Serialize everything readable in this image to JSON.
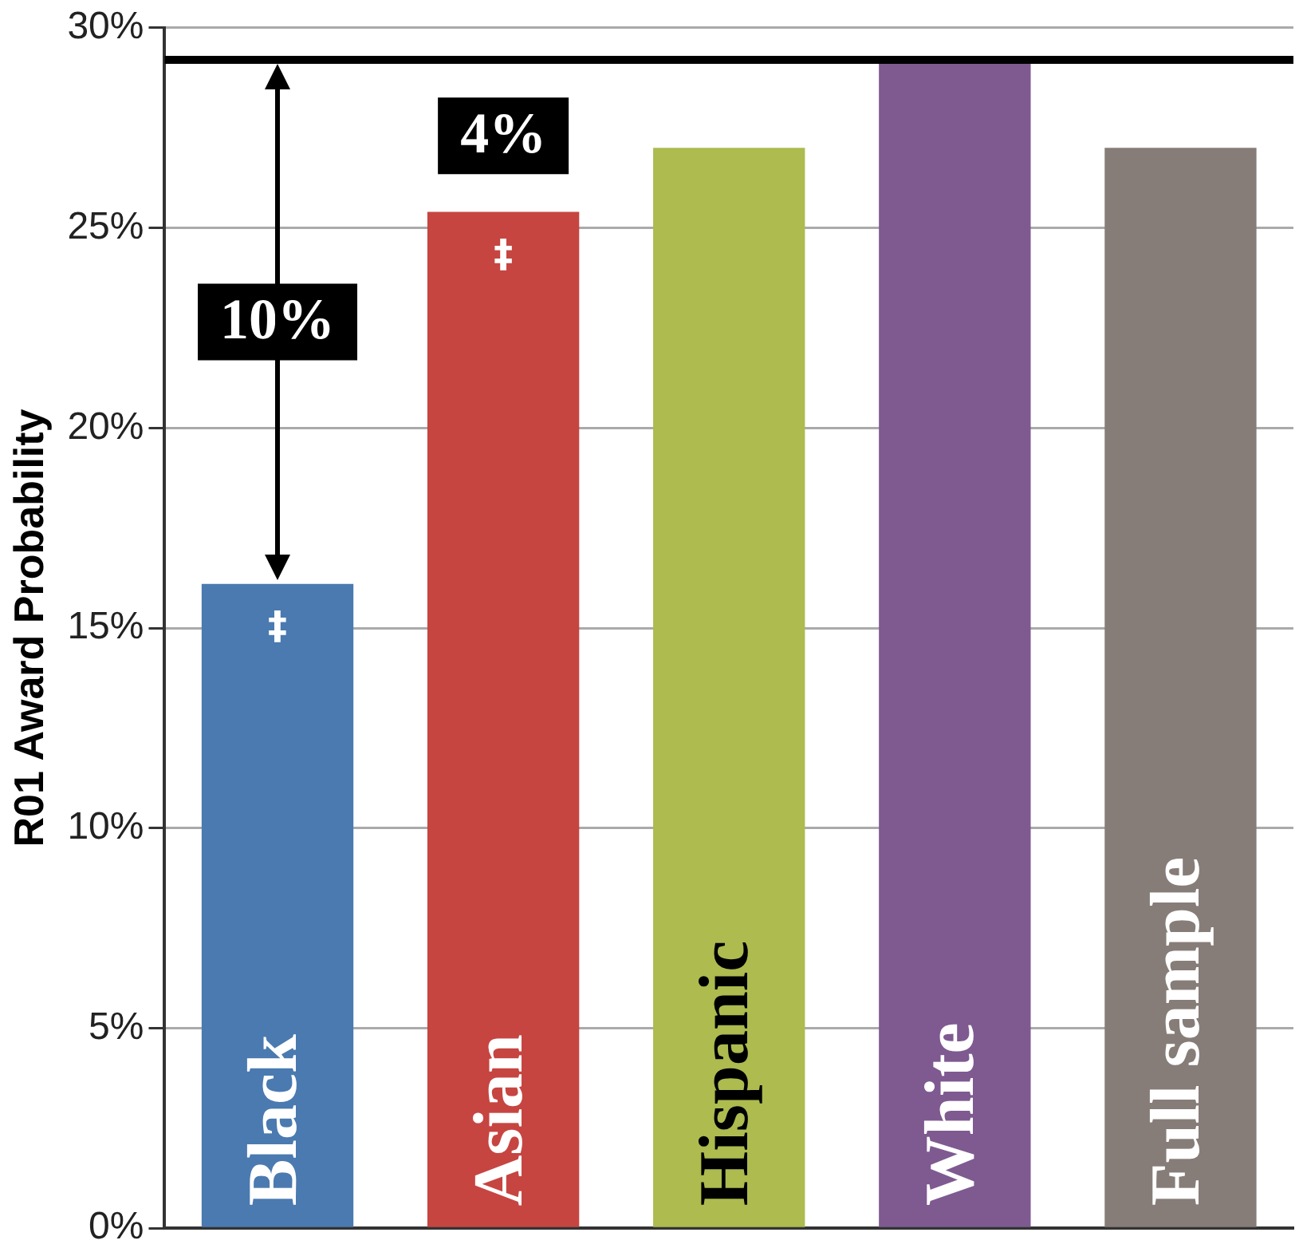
{
  "chart_data": {
    "type": "bar",
    "ylabel": "R01 Award Probability",
    "categories": [
      "Black",
      "Asian",
      "Hispanic",
      "White",
      "Full sample"
    ],
    "values": [
      16.1,
      25.4,
      27.0,
      29.2,
      27.0
    ],
    "colors": [
      "#4a7ab0",
      "#c64541",
      "#adbb4f",
      "#7e5a91",
      "#877d78"
    ],
    "ylim": [
      0,
      30
    ],
    "yticks": [
      {
        "value": 0,
        "label": "0%"
      },
      {
        "value": 5,
        "label": "5%"
      },
      {
        "value": 10,
        "label": "10%"
      },
      {
        "value": 15,
        "label": "15%"
      },
      {
        "value": 20,
        "label": "20%"
      },
      {
        "value": 25,
        "label": "25%"
      },
      {
        "value": 30,
        "label": "30%"
      }
    ],
    "grid": "y",
    "legend": false,
    "ref_lines": [
      {
        "axis": "y",
        "value": 29.2,
        "color": "#000000"
      }
    ],
    "annotations": [
      "10%",
      "4%",
      "‡",
      "‡"
    ]
  }
}
